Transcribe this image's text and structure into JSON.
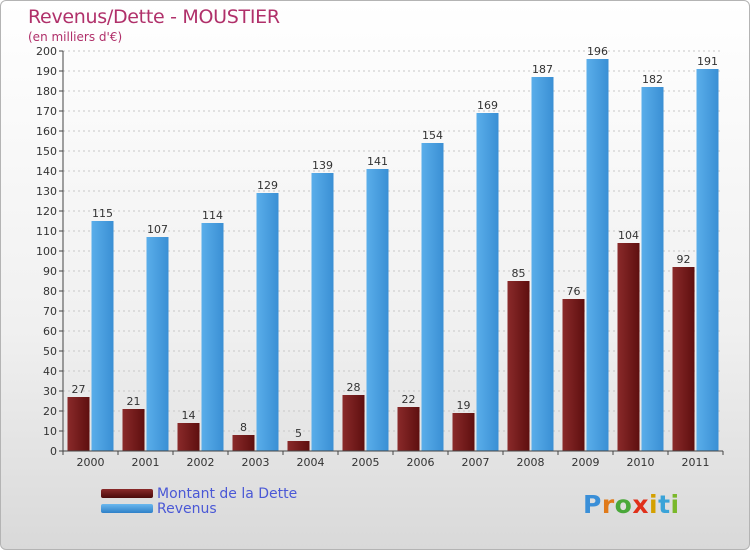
{
  "header": {
    "title": "Revenus/Dette - MOUSTIER",
    "subtitle": "(en milliers d'€)"
  },
  "logo": {
    "text": "Proxiti",
    "letter_colors": [
      "#3a8fd8",
      "#e07a1a",
      "#4aa83a",
      "#e0301a",
      "#d4a000",
      "#3aa3d8",
      "#7ab82a"
    ]
  },
  "chart_data": {
    "type": "bar",
    "title": "Revenus/Dette - MOUSTIER",
    "subtitle": "(en milliers d'€)",
    "categories": [
      "2000",
      "2001",
      "2002",
      "2003",
      "2004",
      "2005",
      "2006",
      "2007",
      "2008",
      "2009",
      "2010",
      "2011"
    ],
    "series": [
      {
        "name": "Montant de la Dette",
        "color": "#7a1a1a",
        "values": [
          27,
          21,
          14,
          8,
          5,
          28,
          22,
          19,
          85,
          76,
          104,
          92
        ]
      },
      {
        "name": "Revenus",
        "color": "#4aa3e6",
        "values": [
          115,
          107,
          114,
          129,
          139,
          141,
          154,
          169,
          187,
          196,
          182,
          191
        ]
      }
    ],
    "ylim": [
      0,
      200
    ],
    "ytick_step": 10,
    "grid": true,
    "legend": "bottom-left"
  }
}
